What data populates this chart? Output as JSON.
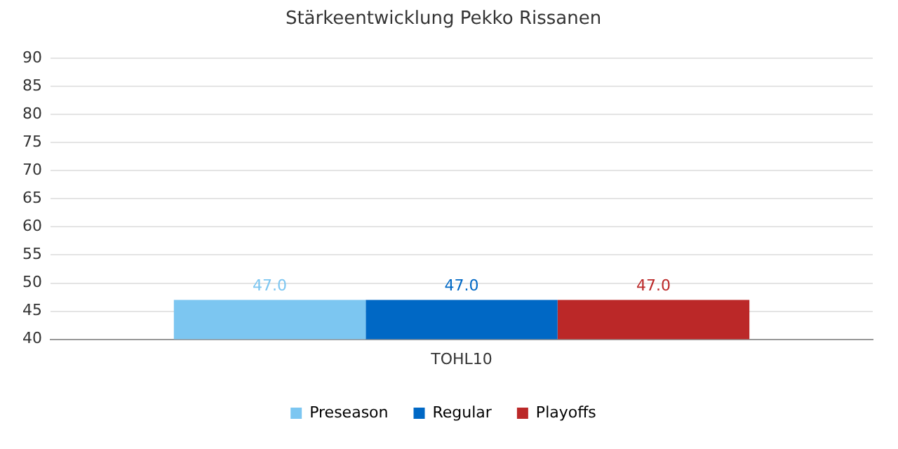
{
  "chart_data": {
    "type": "bar",
    "title": "Stärkeentwicklung Pekko Rissanen",
    "categories": [
      "TOHL10"
    ],
    "series": [
      {
        "name": "Preseason",
        "color": "#7cc6f1",
        "values": [
          47.0
        ],
        "value_labels": [
          "47.0"
        ]
      },
      {
        "name": "Regular",
        "color": "#0068c5",
        "values": [
          47.0
        ],
        "value_labels": [
          "47.0"
        ]
      },
      {
        "name": "Playoffs",
        "color": "#bb2828",
        "values": [
          47.0
        ],
        "value_labels": [
          "47.0"
        ]
      }
    ],
    "ylim": [
      40,
      90
    ],
    "yticks": [
      40,
      45,
      50,
      55,
      60,
      65,
      70,
      75,
      80,
      85,
      90
    ],
    "grid": "y",
    "legend": "bottom"
  }
}
